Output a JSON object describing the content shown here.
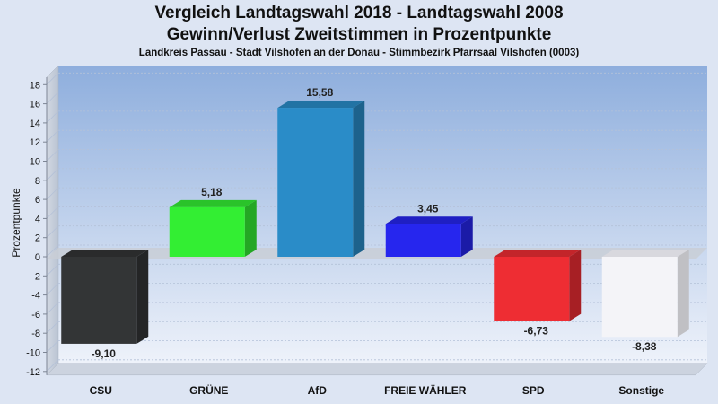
{
  "header": {
    "title_line1": "Vergleich Landtagswahl 2018 - Landtagswahl 2008",
    "title_line2": "Gewinn/Verlust Zweitstimmen in Prozentpunkte",
    "subtitle": "Landkreis Passau - Stadt Vilshofen an der Donau - Stimmbezirk Pfarrsaal Vilshofen (0003)"
  },
  "chart_data": {
    "type": "bar",
    "ylabel": "Prozentpunkte",
    "ylim": [
      -12,
      19
    ],
    "yticks": [
      -12,
      -10,
      -8,
      -6,
      -4,
      -2,
      0,
      2,
      4,
      6,
      8,
      10,
      12,
      14,
      16,
      18
    ],
    "categories": [
      "CSU",
      "GRÜNE",
      "AfD",
      "FREIE WÄHLER",
      "SPD",
      "Sonstige"
    ],
    "values": [
      -9.1,
      5.18,
      15.58,
      3.45,
      -6.73,
      -8.38
    ],
    "value_labels": [
      "-9,10",
      "5,18",
      "15,58",
      "3,45",
      "-6,73",
      "-8,38"
    ],
    "colors": [
      "#333536",
      "#33ee33",
      "#2a8cc8",
      "#2626ee",
      "#ee2d33",
      "#f4f4f8"
    ],
    "grid": true
  }
}
